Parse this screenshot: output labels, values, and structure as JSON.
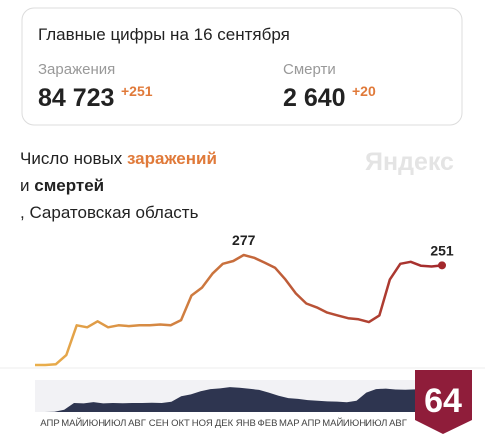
{
  "header": {
    "title": "Главные цифры на 16 сентября",
    "stats": [
      {
        "label": "Заражения",
        "value": "84 723",
        "delta": "+251"
      },
      {
        "label": "Смерти",
        "value": "2 640",
        "delta": "+20"
      }
    ]
  },
  "brand": "Яндекс",
  "badge": "64",
  "chart_data": {
    "type": "line",
    "title_prefix": "Число новых",
    "title_infections": "заражений",
    "title_and": "и",
    "title_deaths": "смертей",
    "title_region": ", Саратовская область",
    "color_start": "#eab04c",
    "color_end": "#a3282c",
    "values": [
      0,
      0,
      2,
      25,
      100,
      95,
      110,
      95,
      100,
      98,
      100,
      100,
      102,
      100,
      113,
      175,
      195,
      230,
      255,
      262,
      277,
      270,
      258,
      245,
      215,
      180,
      155,
      145,
      132,
      125,
      118,
      115,
      108,
      125,
      215,
      255,
      260,
      250,
      248,
      251
    ],
    "labeled_points": [
      20,
      39
    ],
    "navigator_labels": [
      "АПР",
      "МАЙ",
      "ИЮН",
      "ИЮЛ",
      "АВГ",
      "СЕН",
      "ОКТ",
      "НОЯ",
      "ДЕК",
      "ЯНВ",
      "ФЕВ",
      "МАР",
      "АПР",
      "МАЙ",
      "ИЮН",
      "ИЮЛ",
      "АВГ"
    ]
  }
}
